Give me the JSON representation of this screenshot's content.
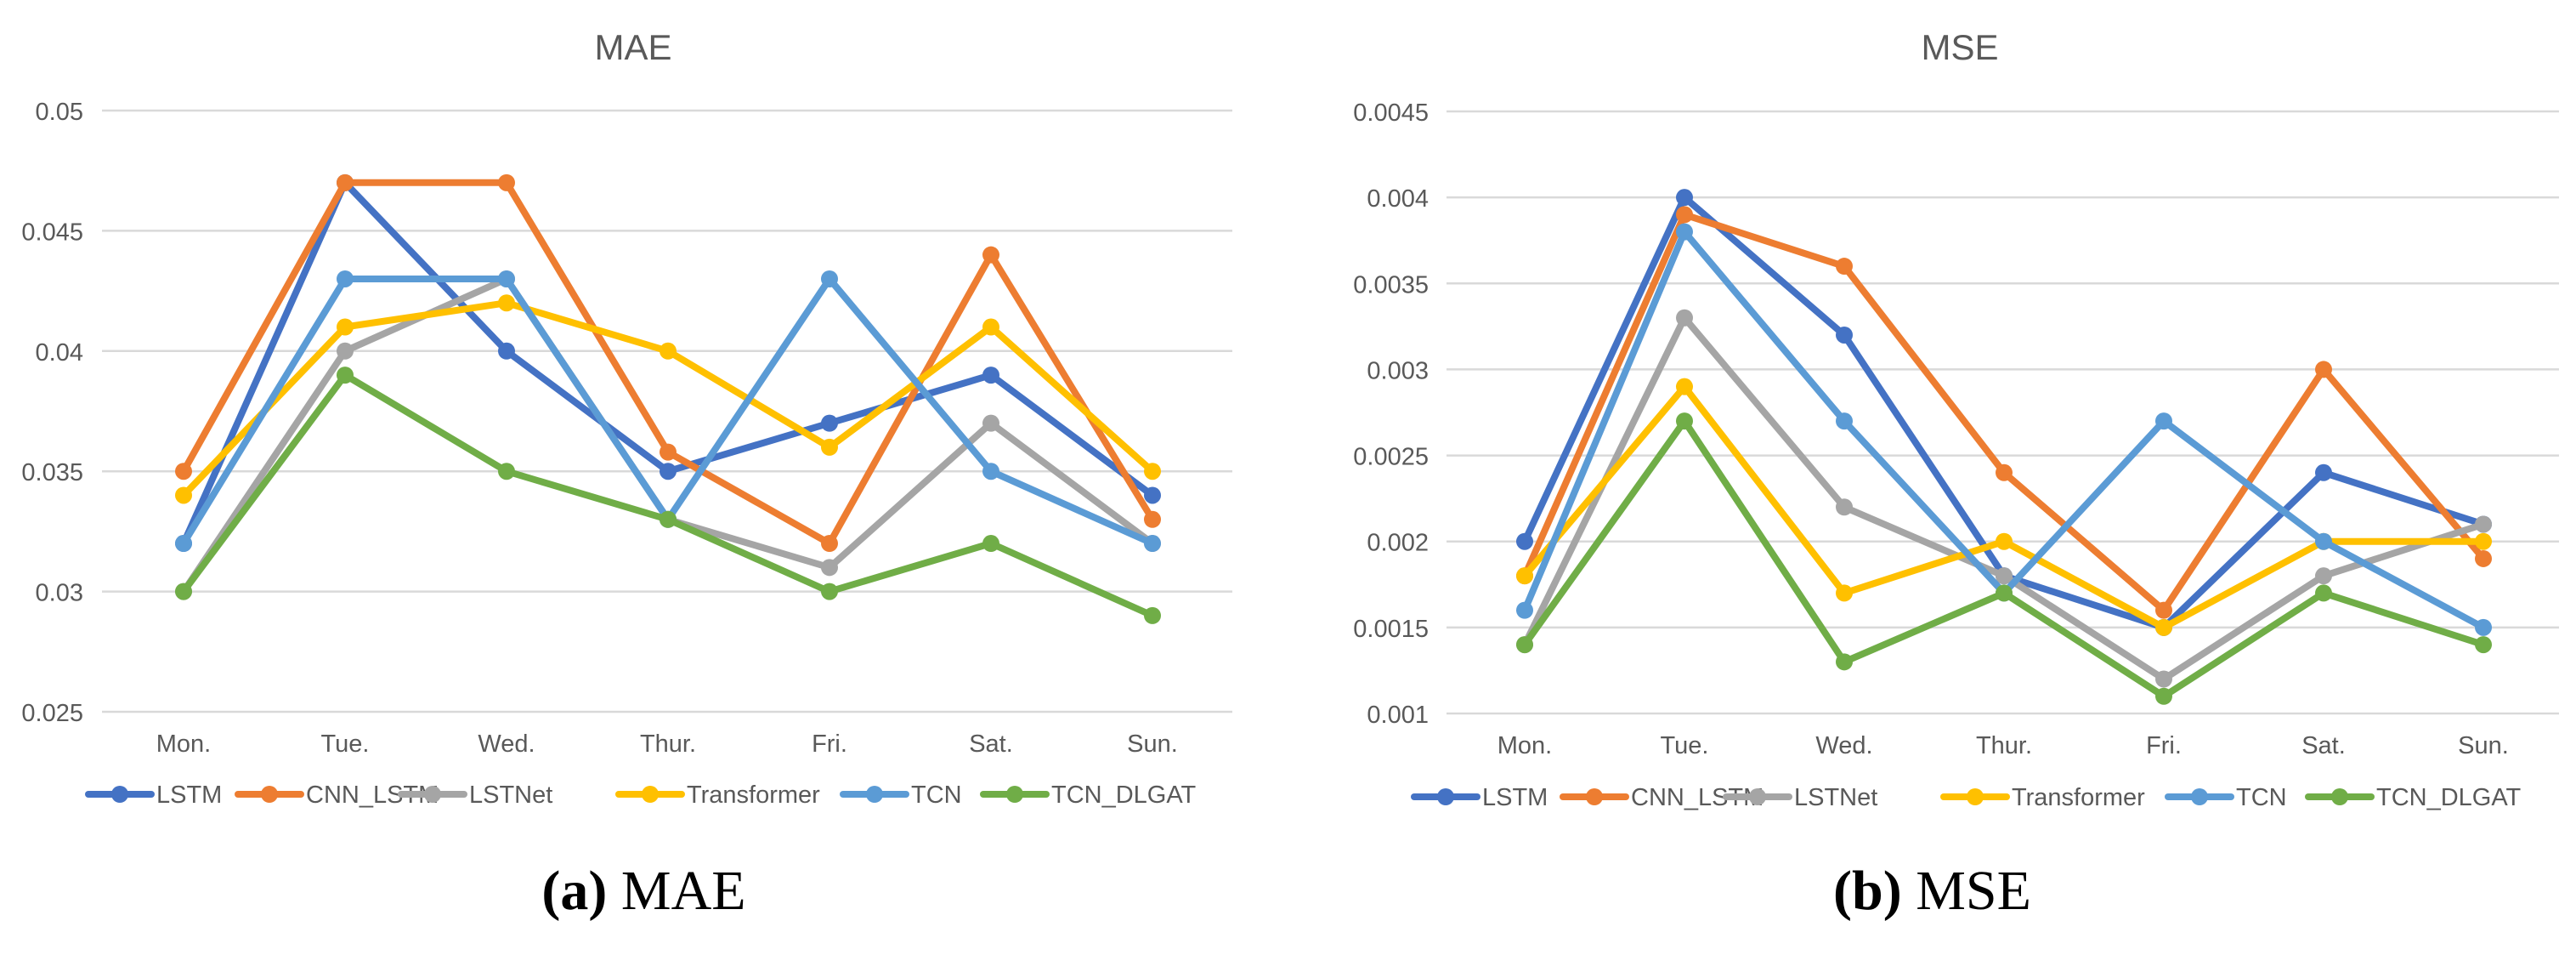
{
  "chart_data": [
    {
      "type": "line",
      "title": "MAE",
      "xlabel": "",
      "ylabel": "",
      "categories": [
        "Mon.",
        "Tue.",
        "Wed.",
        "Thur.",
        "Fri.",
        "Sat.",
        "Sun."
      ],
      "ylim": [
        0.025,
        0.05
      ],
      "yticks": [
        "0.025",
        "0.03",
        "0.035",
        "0.04",
        "0.045",
        "0.05"
      ],
      "ytick_values": [
        0.025,
        0.03,
        0.035,
        0.04,
        0.045,
        0.05
      ],
      "grid": true,
      "legend_position": "bottom",
      "series": [
        {
          "name": "LSTM",
          "color": "#4472C4",
          "values": [
            0.032,
            0.047,
            0.04,
            0.035,
            0.037,
            0.039,
            0.034
          ]
        },
        {
          "name": "CNN_LSTM",
          "color": "#ED7D31",
          "values": [
            0.035,
            0.047,
            0.047,
            0.0358,
            0.032,
            0.044,
            0.033
          ]
        },
        {
          "name": "LSTNet",
          "color": "#A5A5A5",
          "values": [
            0.03,
            0.04,
            0.043,
            0.033,
            0.031,
            0.037,
            0.032
          ]
        },
        {
          "name": "Transformer",
          "color": "#FFC000",
          "values": [
            0.034,
            0.041,
            0.042,
            0.04,
            0.036,
            0.041,
            0.035
          ]
        },
        {
          "name": "TCN",
          "color": "#5B9BD5",
          "values": [
            0.032,
            0.043,
            0.043,
            0.033,
            0.043,
            0.035,
            0.032
          ]
        },
        {
          "name": "TCN_DLGAT",
          "color": "#70AD47",
          "values": [
            0.03,
            0.039,
            0.035,
            0.033,
            0.03,
            0.032,
            0.029
          ]
        }
      ]
    },
    {
      "type": "line",
      "title": "MSE",
      "xlabel": "",
      "ylabel": "",
      "categories": [
        "Mon.",
        "Tue.",
        "Wed.",
        "Thur.",
        "Fri.",
        "Sat.",
        "Sun."
      ],
      "ylim": [
        0.001,
        0.0045
      ],
      "yticks": [
        "0.001",
        "0.0015",
        "0.002",
        "0.0025",
        "0.003",
        "0.0035",
        "0.004",
        "0.0045"
      ],
      "ytick_values": [
        0.001,
        0.0015,
        0.002,
        0.0025,
        0.003,
        0.0035,
        0.004,
        0.0045
      ],
      "grid": true,
      "legend_position": "bottom",
      "series": [
        {
          "name": "LSTM",
          "color": "#4472C4",
          "values": [
            0.002,
            0.004,
            0.0032,
            0.0018,
            0.0015,
            0.0024,
            0.0021
          ]
        },
        {
          "name": "CNN_LSTM",
          "color": "#ED7D31",
          "values": [
            0.0018,
            0.0039,
            0.0036,
            0.0024,
            0.0016,
            0.003,
            0.0019
          ]
        },
        {
          "name": "LSTNet",
          "color": "#A5A5A5",
          "values": [
            0.0014,
            0.0033,
            0.0022,
            0.0018,
            0.0012,
            0.0018,
            0.0021
          ]
        },
        {
          "name": "Transformer",
          "color": "#FFC000",
          "values": [
            0.0018,
            0.0029,
            0.0017,
            0.002,
            0.0015,
            0.002,
            0.002
          ]
        },
        {
          "name": "TCN",
          "color": "#5B9BD5",
          "values": [
            0.0016,
            0.0038,
            0.0027,
            0.0017,
            0.0027,
            0.002,
            0.0015
          ]
        },
        {
          "name": "TCN_DLGAT",
          "color": "#70AD47",
          "values": [
            0.0014,
            0.0027,
            0.0013,
            0.0017,
            0.0011,
            0.0017,
            0.0014
          ]
        }
      ]
    }
  ],
  "captions": [
    {
      "letter": "(a)",
      "text": "MAE"
    },
    {
      "letter": "(b)",
      "text": "MSE"
    }
  ]
}
